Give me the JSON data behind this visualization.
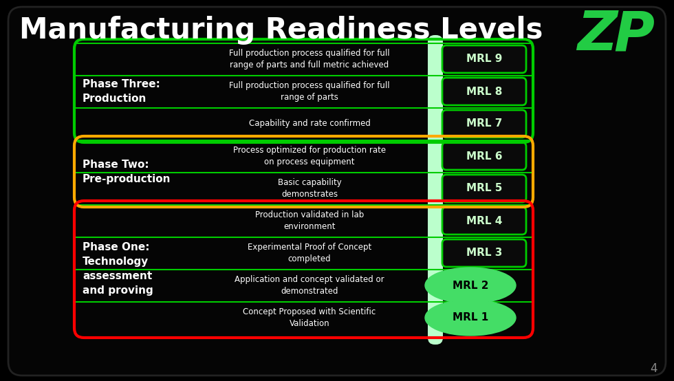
{
  "title": "Manufacturing Readiness Levels",
  "bg_color": "#000000",
  "title_color": "#ffffff",
  "title_fontsize": 30,
  "logo_color": "#22cc44",
  "phases_layout": [
    {
      "name": "Phase Three:\nProduction",
      "border_color": "#00cc00",
      "mrls": [
        "MRL 9",
        "MRL 8",
        "MRL 7"
      ],
      "descs": [
        "Full production process qualified for full\nrange of parts and full metric achieved",
        "Full production process qualified for full\nrange of parts",
        "Capability and rate confirmed"
      ]
    },
    {
      "name": "Phase Two:\nPre-production",
      "border_color": "#ffaa00",
      "mrls": [
        "MRL 6",
        "MRL 5"
      ],
      "descs": [
        "Process optimized for production rate\non process equipment",
        "Basic capability\ndemonstrates"
      ]
    },
    {
      "name": "Phase One:\nTechnology\nassessment\nand proving",
      "border_color": "#ff0000",
      "mrls": [
        "MRL 4",
        "MRL 3",
        "MRL 2",
        "MRL 1"
      ],
      "descs": [
        "Production validated in lab\nenvironment",
        "Experimental Proof of Concept\ncompleted",
        "Application and concept validated or\ndemonstrated",
        "Concept Proposed with Scientific\nValidation"
      ]
    }
  ],
  "mrl_box_facecolor": "#0a0a0a",
  "mrl_text_color": "#ccffcc",
  "mrl_border_color": "#00cc00",
  "desc_text_color": "#ffffff",
  "phase_text_color": "#ffffff",
  "highlighted_mrls": [
    "MRL 2",
    "MRL 1"
  ],
  "highlight_color": "#44dd66",
  "bar_color": "#bbffcc",
  "page_number": "4",
  "page_num_color": "#888888"
}
